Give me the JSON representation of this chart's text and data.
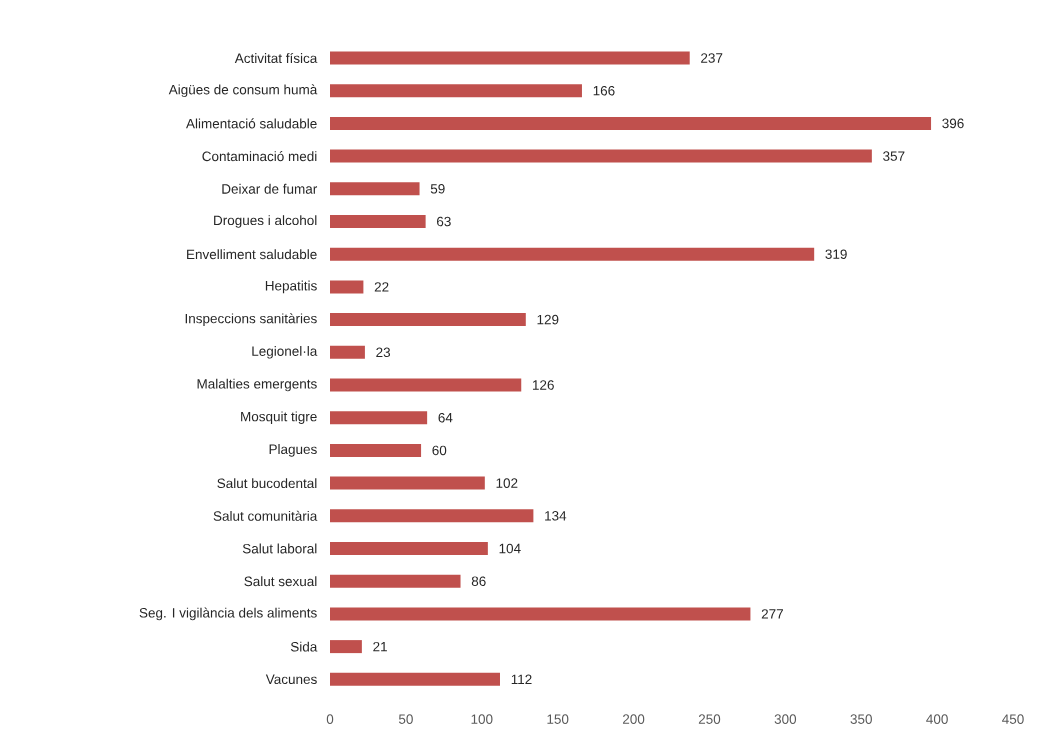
{
  "chart_data": {
    "type": "bar",
    "orientation": "horizontal",
    "categories": [
      "Activitat física",
      "Aigües de consum humà",
      "Alimentació saludable",
      "Contaminació medi",
      "Deixar de fumar",
      "Drogues i alcohol",
      "Envelliment saludable",
      "Hepatitis",
      "Inspeccions sanitàries",
      "Legionel·la",
      "Malalties emergents",
      "Mosquit tigre",
      "Plagues",
      "Salut bucodental",
      "Salut comunitària",
      "Salut laboral",
      "Salut sexual",
      "Seg. I vigilància dels aliments",
      "Sida",
      "Vacunes"
    ],
    "values": [
      237,
      166,
      396,
      357,
      59,
      63,
      319,
      22,
      129,
      23,
      126,
      64,
      60,
      102,
      134,
      104,
      86,
      277,
      21,
      112
    ],
    "color": "#c0504d",
    "xlim": [
      0,
      450
    ],
    "xticks": [
      0,
      50,
      100,
      150,
      200,
      250,
      300,
      350,
      400,
      450
    ],
    "data_labels": true
  }
}
